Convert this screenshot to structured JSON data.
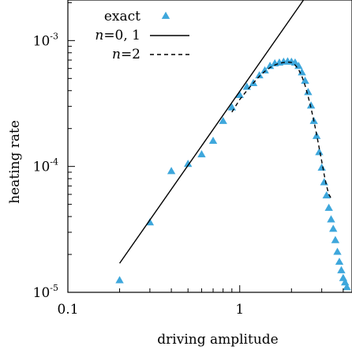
{
  "chart_data": {
    "type": "scatter",
    "xlabel": "driving amplitude",
    "ylabel": "heating rate",
    "xscale": "log",
    "yscale": "log",
    "xlim": [
      0.1,
      4.5
    ],
    "ylim": [
      1e-05,
      0.0021
    ],
    "x_ticks": [
      {
        "value": 0.1,
        "label": "0.1"
      },
      {
        "value": 1,
        "label": "1"
      }
    ],
    "y_ticks": [
      {
        "value": 1e-05,
        "base": "10",
        "exp": "-5"
      },
      {
        "value": 0.0001,
        "base": "10",
        "exp": "-4"
      },
      {
        "value": 0.001,
        "base": "10",
        "exp": "-3"
      }
    ],
    "legend": {
      "placement": "top-left",
      "entries": [
        {
          "label": "exact",
          "marker": "triangle",
          "color": "#3ea7dc"
        },
        {
          "label": "n=0, 1",
          "italic_part": "n",
          "rest": "=0, 1",
          "line": "solid"
        },
        {
          "label": "n=2",
          "italic_part": "n",
          "rest": "=2",
          "line": "dashed"
        }
      ]
    },
    "series": [
      {
        "name": "exact",
        "style": "triangle",
        "color": "#3ea7dc",
        "points": [
          [
            0.2,
            1.25e-05
          ],
          [
            0.3,
            3.6e-05
          ],
          [
            0.4,
            9.2e-05
          ],
          [
            0.5,
            0.000105
          ],
          [
            0.6,
            0.000125
          ],
          [
            0.7,
            0.00016
          ],
          [
            0.8,
            0.00023
          ],
          [
            0.9,
            0.000295
          ],
          [
            1.0,
            0.00037
          ],
          [
            1.1,
            0.00043
          ],
          [
            1.2,
            0.00046
          ],
          [
            1.3,
            0.00053
          ],
          [
            1.4,
            0.00058
          ],
          [
            1.5,
            0.00063
          ],
          [
            1.6,
            0.00066
          ],
          [
            1.7,
            0.00067
          ],
          [
            1.8,
            0.00068
          ],
          [
            1.9,
            0.000685
          ],
          [
            2.0,
            0.00068
          ],
          [
            2.1,
            0.00067
          ],
          [
            2.2,
            0.00063
          ],
          [
            2.3,
            0.00056
          ],
          [
            2.4,
            0.00048
          ],
          [
            2.5,
            0.00039
          ],
          [
            2.6,
            0.000305
          ],
          [
            2.7,
            0.00023
          ],
          [
            2.8,
            0.000175
          ],
          [
            2.9,
            0.00013
          ],
          [
            3.0,
            9.8e-05
          ],
          [
            3.1,
            7.5e-05
          ],
          [
            3.2,
            5.9e-05
          ],
          [
            3.3,
            4.7e-05
          ],
          [
            3.4,
            3.8e-05
          ],
          [
            3.5,
            3.2e-05
          ],
          [
            3.6,
            2.6e-05
          ],
          [
            3.7,
            2.1e-05
          ],
          [
            3.8,
            1.75e-05
          ],
          [
            3.9,
            1.5e-05
          ],
          [
            4.0,
            1.3e-05
          ],
          [
            4.1,
            1.2e-05
          ],
          [
            4.2,
            1.1e-05
          ]
        ]
      },
      {
        "name": "n=0, 1",
        "style": "solid",
        "color": "#000000",
        "points": [
          [
            0.2,
            1.7e-05
          ],
          [
            2.35,
            0.0021
          ]
        ]
      },
      {
        "name": "n=2",
        "style": "dashed",
        "color": "#000000",
        "points": [
          [
            0.9,
            0.00027
          ],
          [
            1.0,
            0.00034
          ],
          [
            1.1,
            0.0004
          ],
          [
            1.2,
            0.00046
          ],
          [
            1.3,
            0.00052
          ],
          [
            1.4,
            0.00057
          ],
          [
            1.5,
            0.00061
          ],
          [
            1.6,
            0.00064
          ],
          [
            1.7,
            0.00066
          ],
          [
            1.8,
            0.00067
          ],
          [
            1.9,
            0.000675
          ],
          [
            2.0,
            0.00067
          ],
          [
            2.1,
            0.00064
          ],
          [
            2.2,
            0.00059
          ],
          [
            2.3,
            0.00052
          ],
          [
            2.4,
            0.00044
          ],
          [
            2.5,
            0.00036
          ],
          [
            2.6,
            0.00029
          ],
          [
            2.7,
            0.00023
          ],
          [
            2.8,
            0.00018
          ],
          [
            2.9,
            0.00014
          ],
          [
            3.0,
            0.00011
          ],
          [
            3.1,
            8.6e-05
          ],
          [
            3.2,
            7e-05
          ],
          [
            3.3,
            6e-05
          ],
          [
            3.4,
            5.6e-05
          ]
        ]
      }
    ]
  }
}
